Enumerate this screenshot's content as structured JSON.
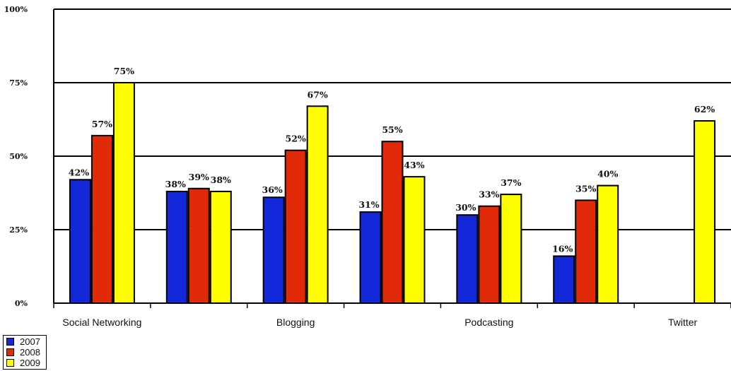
{
  "chart_data": {
    "type": "bar",
    "categories": [
      "Social Networking",
      "",
      "Blogging",
      "",
      "Podcasting",
      "",
      "Twitter"
    ],
    "series": [
      {
        "name": "2007",
        "color": "#1328d8",
        "values": [
          42,
          38,
          36,
          31,
          30,
          16,
          null
        ]
      },
      {
        "name": "2008",
        "color": "#e02a08",
        "values": [
          57,
          39,
          52,
          55,
          33,
          35,
          null
        ]
      },
      {
        "name": "2009",
        "color": "#ffff00",
        "values": [
          75,
          38,
          67,
          43,
          37,
          40,
          62
        ]
      }
    ],
    "y_ticks": [
      "0%",
      "25%",
      "50%",
      "75%",
      "100%"
    ],
    "ylim": [
      0,
      100
    ],
    "grid": true,
    "legend": "bottom-left",
    "title": "",
    "xlabel": "",
    "ylabel": ""
  }
}
